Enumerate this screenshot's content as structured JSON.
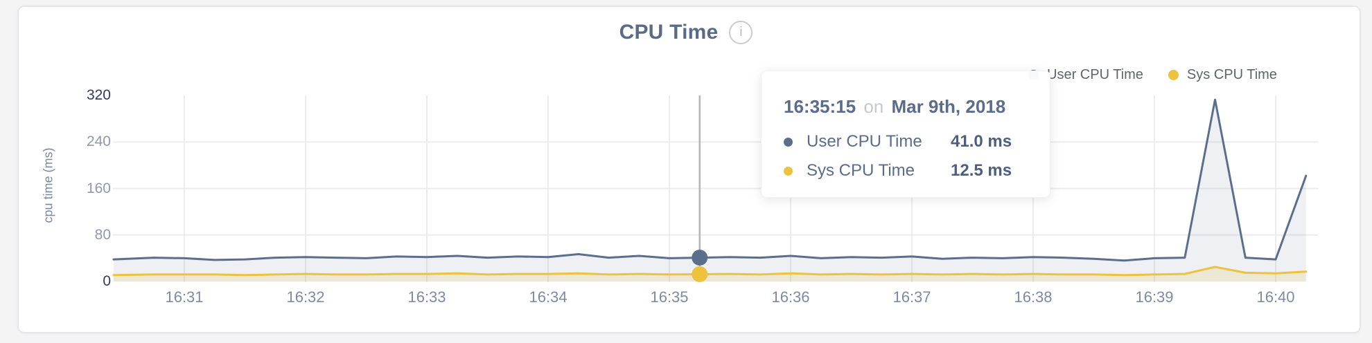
{
  "header": {
    "title": "CPU Time",
    "info_glyph": "i"
  },
  "tooltip": {
    "time": "16:35:15",
    "connector": "on",
    "date": "Mar 9th, 2018",
    "rows": [
      {
        "label": "User CPU Time",
        "value": "41.0 ms"
      },
      {
        "label": "Sys CPU Time",
        "value": "12.5 ms"
      }
    ]
  },
  "colors": {
    "user_line": "#5b6e8c",
    "user_fill": "rgba(91,110,140,0.10)",
    "sys_line": "#eec23f",
    "sys_fill": "rgba(238,194,63,0.16)",
    "grid": "#ececec",
    "hover_line": "#b4b4b4",
    "axis_tick_dark": "#2e3d5c",
    "axis_tick_light": "#8e99ad",
    "x_tick": "#7d8aa3",
    "title_text": "#5a6b87",
    "legend_text": "#606368",
    "tooltip_text": "#5a6b8c"
  },
  "chart_data": {
    "type": "area",
    "title": "CPU Time",
    "xlabel": "",
    "ylabel": "cpu time (ms)",
    "ylim": [
      0,
      320
    ],
    "yticks": [
      0,
      80,
      160,
      240,
      320
    ],
    "xticks": [
      "16:31",
      "16:32",
      "16:33",
      "16:34",
      "16:35",
      "16:36",
      "16:37",
      "16:38",
      "16:39",
      "16:40"
    ],
    "grid": true,
    "legend_position": "top-right",
    "x_times": [
      "16:30:25",
      "16:30:45",
      "16:31:00",
      "16:31:15",
      "16:31:30",
      "16:31:45",
      "16:32:00",
      "16:32:15",
      "16:32:30",
      "16:32:45",
      "16:33:00",
      "16:33:15",
      "16:33:30",
      "16:33:45",
      "16:34:00",
      "16:34:15",
      "16:34:30",
      "16:34:45",
      "16:35:00",
      "16:35:15",
      "16:35:30",
      "16:35:45",
      "16:36:00",
      "16:36:15",
      "16:36:30",
      "16:36:45",
      "16:37:00",
      "16:37:15",
      "16:37:30",
      "16:37:45",
      "16:38:00",
      "16:38:15",
      "16:38:30",
      "16:38:45",
      "16:39:00",
      "16:39:15",
      "16:39:30",
      "16:39:45",
      "16:40:00",
      "16:40:15"
    ],
    "series": [
      {
        "name": "User CPU Time",
        "color": "#5b6e8c",
        "fill": "rgba(91,110,140,0.10)",
        "values": [
          38,
          41,
          40,
          37,
          38,
          41,
          42,
          41,
          40,
          43,
          42,
          44,
          41,
          43,
          42,
          47,
          41,
          44,
          40,
          41,
          42,
          41,
          44,
          40,
          42,
          41,
          43,
          39,
          41,
          40,
          42,
          41,
          39,
          36,
          40,
          41,
          313,
          41,
          38,
          182
        ]
      },
      {
        "name": "Sys CPU Time",
        "color": "#eec23f",
        "fill": "rgba(238,194,63,0.16)",
        "values": [
          11,
          12,
          12,
          12,
          11,
          12,
          13,
          12,
          12,
          13,
          13,
          14,
          12,
          13,
          13,
          14,
          12,
          13,
          12,
          12.5,
          13,
          12,
          14,
          12,
          13,
          12,
          13,
          12,
          13,
          12,
          13,
          12,
          12,
          11,
          12,
          13,
          25,
          15,
          14,
          17
        ]
      }
    ],
    "hover": {
      "index": 19,
      "time": "16:35:15"
    }
  }
}
